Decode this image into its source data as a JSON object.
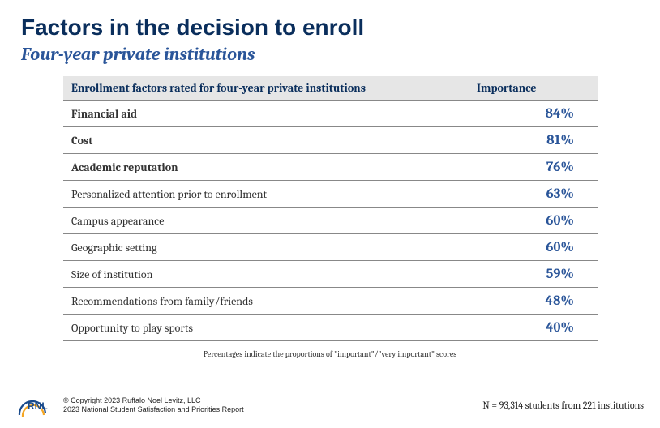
{
  "title": "Factors in the decision to enroll",
  "subtitle": "Four-year private institutions",
  "table": {
    "header_factor": "Enrollment factors rated for four-year private institutions",
    "header_importance": "Importance",
    "rows": [
      {
        "factor": "Financial aid",
        "importance": "84%",
        "bold": true
      },
      {
        "factor": "Cost",
        "importance": "81%",
        "bold": true
      },
      {
        "factor": "Academic reputation",
        "importance": "76%",
        "bold": true
      },
      {
        "factor": "Personalized attention prior to enrollment",
        "importance": "63%",
        "bold": false
      },
      {
        "factor": "Campus appearance",
        "importance": "60%",
        "bold": false
      },
      {
        "factor": "Geographic setting",
        "importance": "60%",
        "bold": false
      },
      {
        "factor": "Size of institution",
        "importance": "59%",
        "bold": false
      },
      {
        "factor": "Recommendations from family/friends",
        "importance": "48%",
        "bold": false
      },
      {
        "factor": "Opportunity to play sports",
        "importance": "40%",
        "bold": false
      }
    ]
  },
  "footnote": "Percentages indicate the proportions of \"important\"/\"very important\" scores",
  "copyright_line1": "© Copyright 2023 Ruffalo Noel Levitz, LLC",
  "copyright_line2": "2023 National Student Satisfaction and Priorities Report",
  "sample_note": "N = 93,314  students  from 221  institutions",
  "logo_text": "RNL",
  "colors": {
    "title": "#0a2e5c",
    "subtitle": "#2a5599",
    "header_bg": "#e6e6e6",
    "importance_text": "#2a5599",
    "row_border": "#888888",
    "logo_arc1": "#1a4b8c",
    "logo_arc2": "#f5a623"
  }
}
